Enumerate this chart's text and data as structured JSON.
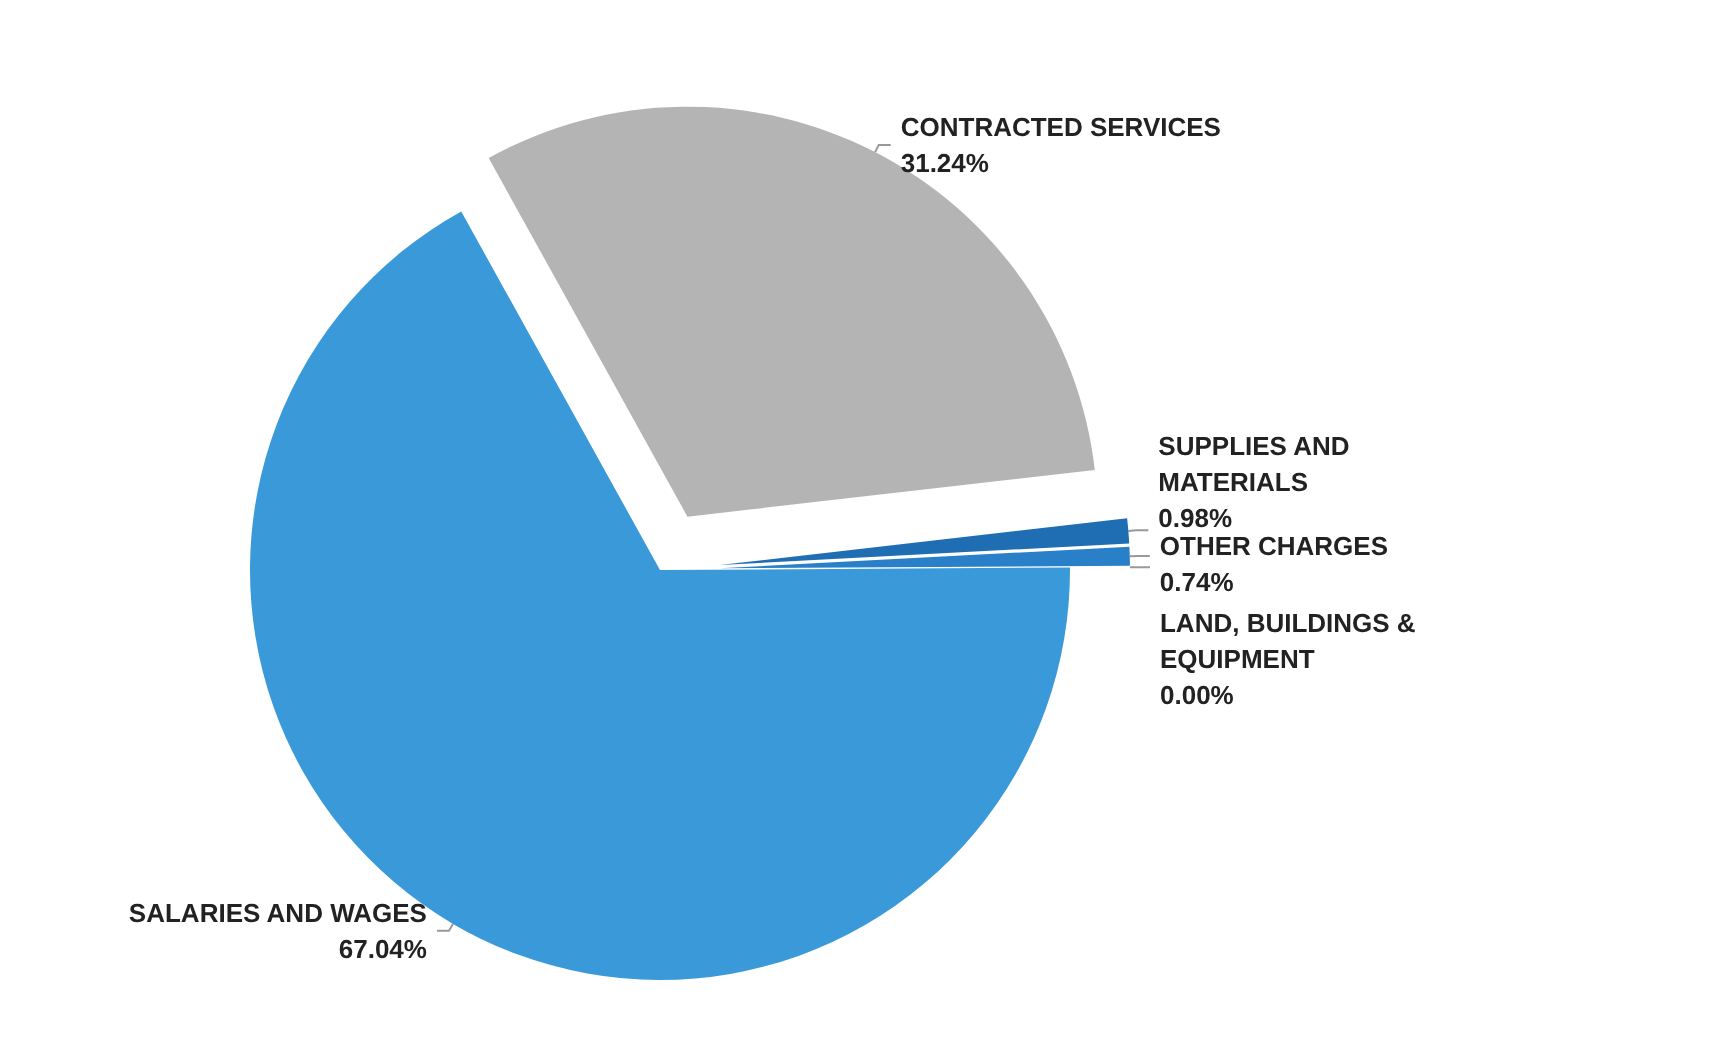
{
  "chart_data": {
    "type": "pie",
    "categories": [
      "CONTRACTED SERVICES",
      "SUPPLIES AND MATERIALS",
      "OTHER CHARGES",
      "LAND, BUILDINGS & EQUIPMENT",
      "SALARIES AND WAGES"
    ],
    "values": [
      31.24,
      0.98,
      0.74,
      0.0,
      67.04
    ],
    "value_labels": [
      "31.24%",
      "0.98%",
      "0.74%",
      "0.00%",
      "67.04%"
    ],
    "colors": [
      "#b4b4b4",
      "#1f6db3",
      "#2a80c8",
      "#3a9ad9",
      "#3a9ad9"
    ],
    "legend": false
  }
}
